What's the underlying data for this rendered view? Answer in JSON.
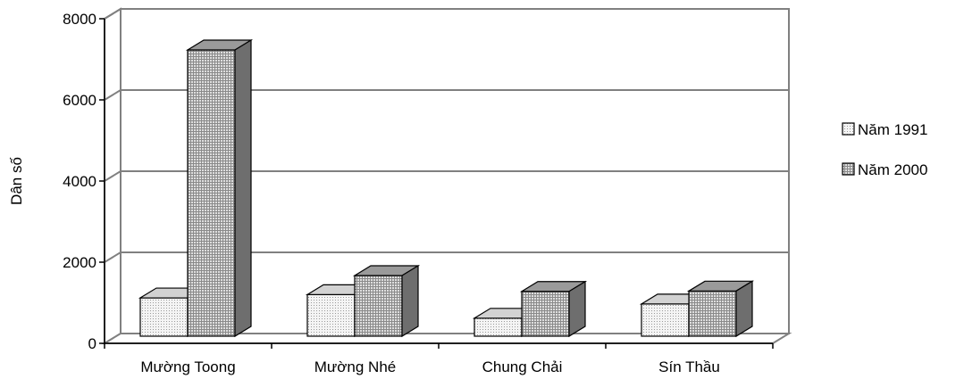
{
  "chart_data": {
    "type": "bar",
    "title": "",
    "xlabel": "",
    "ylabel": "Dân số",
    "ylim": [
      0,
      8000
    ],
    "yticks": [
      "0",
      "2000",
      "4000",
      "6000",
      "8000"
    ],
    "categories": [
      "Mường Toong",
      "Mường Nhé",
      "Chung Chải",
      "Sín Thầu"
    ],
    "series": [
      {
        "name": "Năm 1991",
        "values": [
          1120,
          1200,
          620,
          970
        ],
        "pattern": "dots",
        "color": "#f2f2f2"
      },
      {
        "name": "Năm 2000",
        "values": [
          7230,
          1670,
          1280,
          1290
        ],
        "pattern": "grid",
        "color": "#c8c8c8"
      }
    ],
    "grid": true,
    "legend_position": "right",
    "three_d": true
  }
}
